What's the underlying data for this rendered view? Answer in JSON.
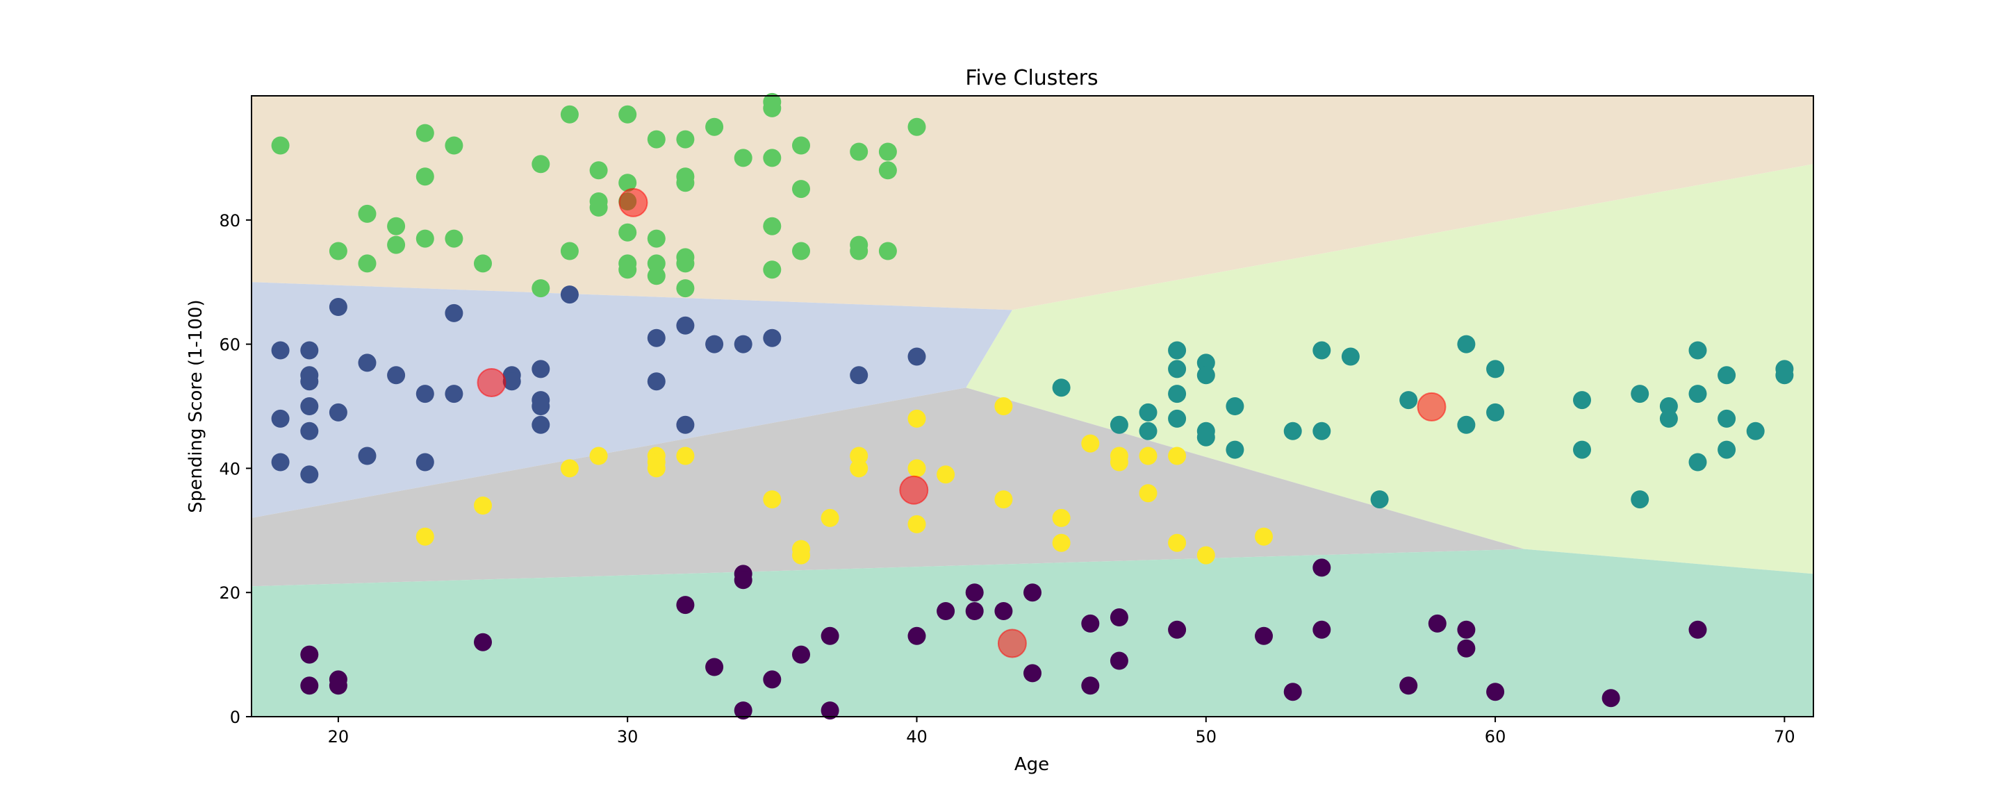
{
  "chart_data": {
    "type": "scatter",
    "title": "Five Clusters",
    "xlabel": "Age",
    "ylabel": "Spending Score (1-100)",
    "xlim": [
      17,
      71
    ],
    "ylim": [
      0,
      100
    ],
    "xticks": [
      20,
      30,
      40,
      50,
      60,
      70
    ],
    "yticks": [
      0,
      20,
      40,
      60,
      80
    ],
    "grid": false,
    "legend": "none",
    "background_regions": {
      "colors": {
        "orange": "#efe2cd",
        "green": "#e3f4c9",
        "blue": "#cbd5e8",
        "gray": "#cccccc",
        "teal": "#b3e2cd"
      },
      "boundary_vertices": {
        "left_blue_orange": [
          17,
          70
        ],
        "junction_top": [
          43.3,
          65.5
        ],
        "right_green_orange": [
          71,
          89
        ],
        "junction_mid": [
          41.7,
          53
        ],
        "left_blue_gray": [
          17,
          32
        ],
        "junction_low": [
          61,
          27
        ],
        "left_gray_teal": [
          17,
          21
        ],
        "right_green_teal": [
          71,
          23
        ]
      }
    },
    "series": [
      {
        "color": "#440154",
        "points": [
          [
            19,
            10
          ],
          [
            19,
            5
          ],
          [
            20,
            6
          ],
          [
            20,
            5
          ],
          [
            25,
            12
          ],
          [
            32,
            18
          ],
          [
            33,
            8
          ],
          [
            34,
            1
          ],
          [
            34,
            23
          ],
          [
            34,
            22
          ],
          [
            35,
            6
          ],
          [
            36,
            10
          ],
          [
            37,
            13
          ],
          [
            37,
            1
          ],
          [
            40,
            13
          ],
          [
            41,
            17
          ],
          [
            42,
            20
          ],
          [
            42,
            17
          ],
          [
            43,
            17
          ],
          [
            44,
            20
          ],
          [
            44,
            7
          ],
          [
            46,
            15
          ],
          [
            46,
            5
          ],
          [
            47,
            16
          ],
          [
            47,
            9
          ],
          [
            49,
            14
          ],
          [
            52,
            13
          ],
          [
            53,
            4
          ],
          [
            54,
            24
          ],
          [
            54,
            14
          ],
          [
            57,
            5
          ],
          [
            58,
            15
          ],
          [
            59,
            14
          ],
          [
            59,
            11
          ],
          [
            60,
            4
          ],
          [
            64,
            3
          ],
          [
            67,
            14
          ]
        ]
      },
      {
        "color": "#3b528b",
        "points": [
          [
            18,
            59
          ],
          [
            18,
            48
          ],
          [
            18,
            41
          ],
          [
            19,
            59
          ],
          [
            19,
            55
          ],
          [
            19,
            54
          ],
          [
            19,
            50
          ],
          [
            19,
            46
          ],
          [
            19,
            39
          ],
          [
            20,
            66
          ],
          [
            20,
            49
          ],
          [
            21,
            57
          ],
          [
            21,
            42
          ],
          [
            22,
            55
          ],
          [
            23,
            52
          ],
          [
            23,
            41
          ],
          [
            24,
            65
          ],
          [
            24,
            52
          ],
          [
            26,
            55
          ],
          [
            26,
            54
          ],
          [
            27,
            56
          ],
          [
            27,
            51
          ],
          [
            27,
            50
          ],
          [
            27,
            47
          ],
          [
            28,
            68
          ],
          [
            31,
            61
          ],
          [
            31,
            54
          ],
          [
            32,
            63
          ],
          [
            32,
            47
          ],
          [
            33,
            60
          ],
          [
            34,
            60
          ],
          [
            35,
            61
          ],
          [
            38,
            55
          ],
          [
            40,
            58
          ]
        ]
      },
      {
        "color": "#21918c",
        "points": [
          [
            45,
            53
          ],
          [
            47,
            47
          ],
          [
            48,
            49
          ],
          [
            48,
            46
          ],
          [
            49,
            59
          ],
          [
            49,
            56
          ],
          [
            49,
            52
          ],
          [
            49,
            48
          ],
          [
            50,
            57
          ],
          [
            50,
            55
          ],
          [
            50,
            46
          ],
          [
            50,
            45
          ],
          [
            51,
            50
          ],
          [
            51,
            43
          ],
          [
            53,
            46
          ],
          [
            54,
            59
          ],
          [
            54,
            46
          ],
          [
            55,
            58
          ],
          [
            56,
            35
          ],
          [
            57,
            51
          ],
          [
            59,
            60
          ],
          [
            59,
            47
          ],
          [
            60,
            56
          ],
          [
            60,
            49
          ],
          [
            63,
            51
          ],
          [
            63,
            43
          ],
          [
            65,
            52
          ],
          [
            65,
            35
          ],
          [
            66,
            50
          ],
          [
            66,
            48
          ],
          [
            67,
            59
          ],
          [
            67,
            52
          ],
          [
            67,
            41
          ],
          [
            68,
            55
          ],
          [
            68,
            48
          ],
          [
            68,
            43
          ],
          [
            69,
            46
          ],
          [
            70,
            56
          ],
          [
            70,
            55
          ]
        ]
      },
      {
        "color": "#5ec962",
        "points": [
          [
            18,
            92
          ],
          [
            20,
            75
          ],
          [
            21,
            81
          ],
          [
            21,
            73
          ],
          [
            22,
            79
          ],
          [
            22,
            76
          ],
          [
            23,
            94
          ],
          [
            23,
            87
          ],
          [
            23,
            77
          ],
          [
            24,
            92
          ],
          [
            24,
            77
          ],
          [
            25,
            73
          ],
          [
            27,
            89
          ],
          [
            27,
            69
          ],
          [
            28,
            97
          ],
          [
            28,
            75
          ],
          [
            29,
            88
          ],
          [
            29,
            83
          ],
          [
            29,
            82
          ],
          [
            30,
            97
          ],
          [
            30,
            86
          ],
          [
            30,
            83
          ],
          [
            30,
            78
          ],
          [
            30,
            73
          ],
          [
            30,
            72
          ],
          [
            31,
            93
          ],
          [
            31,
            77
          ],
          [
            31,
            73
          ],
          [
            31,
            71
          ],
          [
            32,
            93
          ],
          [
            32,
            87
          ],
          [
            32,
            86
          ],
          [
            32,
            74
          ],
          [
            32,
            73
          ],
          [
            32,
            69
          ],
          [
            33,
            95
          ],
          [
            34,
            90
          ],
          [
            35,
            99
          ],
          [
            35,
            98
          ],
          [
            35,
            90
          ],
          [
            35,
            79
          ],
          [
            35,
            72
          ],
          [
            36,
            92
          ],
          [
            36,
            85
          ],
          [
            36,
            75
          ],
          [
            38,
            91
          ],
          [
            38,
            76
          ],
          [
            38,
            75
          ],
          [
            39,
            91
          ],
          [
            39,
            88
          ],
          [
            39,
            75
          ],
          [
            40,
            95
          ]
        ]
      },
      {
        "color": "#fde725",
        "points": [
          [
            23,
            29
          ],
          [
            25,
            34
          ],
          [
            28,
            40
          ],
          [
            29,
            42
          ],
          [
            31,
            42
          ],
          [
            31,
            41
          ],
          [
            31,
            40
          ],
          [
            32,
            42
          ],
          [
            35,
            35
          ],
          [
            36,
            27
          ],
          [
            36,
            26
          ],
          [
            37,
            32
          ],
          [
            38,
            42
          ],
          [
            38,
            40
          ],
          [
            40,
            48
          ],
          [
            40,
            40
          ],
          [
            40,
            31
          ],
          [
            41,
            39
          ],
          [
            43,
            50
          ],
          [
            43,
            35
          ],
          [
            45,
            32
          ],
          [
            45,
            28
          ],
          [
            46,
            44
          ],
          [
            47,
            42
          ],
          [
            47,
            41
          ],
          [
            48,
            42
          ],
          [
            48,
            36
          ],
          [
            49,
            42
          ],
          [
            49,
            28
          ],
          [
            50,
            26
          ],
          [
            52,
            29
          ]
        ]
      }
    ],
    "centroids": {
      "color": "#ff0000",
      "points": [
        [
          25.3,
          53.8
        ],
        [
          30.2,
          82.8
        ],
        [
          39.9,
          36.5
        ],
        [
          43.3,
          11.8
        ],
        [
          57.8,
          49.9
        ]
      ]
    }
  }
}
